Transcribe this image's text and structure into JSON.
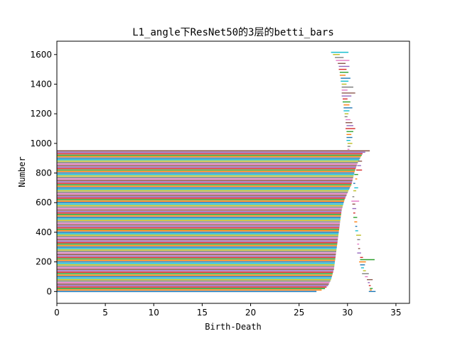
{
  "chart_data": {
    "type": "bar",
    "orientation": "horizontal",
    "title": "L1_angle下ResNet50的3层的betti_bars",
    "xlabel": "Birth-Death",
    "ylabel": "Number",
    "xlim": [
      0,
      36.4
    ],
    "ylim": [
      -80,
      1690
    ],
    "x_ticks": [
      0,
      5,
      10,
      15,
      20,
      25,
      30,
      35
    ],
    "y_ticks": [
      0,
      200,
      400,
      600,
      800,
      1000,
      1200,
      1400,
      1600
    ],
    "grid": false,
    "legend": "none",
    "colors": [
      "#1f77b4",
      "#ff7f0e",
      "#2ca02c",
      "#d62728",
      "#9467bd",
      "#8c564b",
      "#e377c2",
      "#7f7f7f",
      "#bcbd22",
      "#17becf"
    ],
    "dim0_bars": {
      "count": 950,
      "birth": 0,
      "death_profile": [
        [
          0,
          26.8
        ],
        [
          15,
          27.6
        ],
        [
          40,
          28.0
        ],
        [
          80,
          28.3
        ],
        [
          150,
          28.6
        ],
        [
          250,
          28.8
        ],
        [
          350,
          29.0
        ],
        [
          450,
          29.2
        ],
        [
          550,
          29.4
        ],
        [
          620,
          29.7
        ],
        [
          680,
          30.1
        ],
        [
          720,
          30.4
        ],
        [
          800,
          30.7
        ],
        [
          860,
          31.0
        ],
        [
          900,
          31.3
        ],
        [
          935,
          31.6
        ],
        [
          950,
          32.3
        ]
      ]
    },
    "dim1_bars": [
      {
        "y": 0,
        "birth": 32.2,
        "death": 32.9
      },
      {
        "y": 10,
        "birth": 32.3,
        "death": 32.5
      },
      {
        "y": 20,
        "birth": 32.3,
        "death": 32.6
      },
      {
        "y": 40,
        "birth": 32.2,
        "death": 32.4
      },
      {
        "y": 60,
        "birth": 32.1,
        "death": 32.3
      },
      {
        "y": 80,
        "birth": 32.0,
        "death": 32.6
      },
      {
        "y": 100,
        "birth": 31.8,
        "death": 32.1
      },
      {
        "y": 120,
        "birth": 31.5,
        "death": 32.2
      },
      {
        "y": 140,
        "birth": 31.6,
        "death": 31.9
      },
      {
        "y": 160,
        "birth": 31.4,
        "death": 31.7
      },
      {
        "y": 180,
        "birth": 31.3,
        "death": 31.8
      },
      {
        "y": 200,
        "birth": 31.2,
        "death": 31.9
      },
      {
        "y": 215,
        "birth": 31.3,
        "death": 32.8
      },
      {
        "y": 230,
        "birth": 31.3,
        "death": 31.6
      },
      {
        "y": 260,
        "birth": 31.0,
        "death": 31.4
      },
      {
        "y": 290,
        "birth": 31.1,
        "death": 31.3
      },
      {
        "y": 320,
        "birth": 31.0,
        "death": 31.2
      },
      {
        "y": 350,
        "birth": 31.0,
        "death": 31.3
      },
      {
        "y": 380,
        "birth": 30.9,
        "death": 31.4
      },
      {
        "y": 410,
        "birth": 30.8,
        "death": 31.1
      },
      {
        "y": 440,
        "birth": 30.8,
        "death": 31.0
      },
      {
        "y": 470,
        "birth": 30.7,
        "death": 31.0
      },
      {
        "y": 500,
        "birth": 30.6,
        "death": 31.0
      },
      {
        "y": 530,
        "birth": 30.6,
        "death": 30.8
      },
      {
        "y": 560,
        "birth": 30.5,
        "death": 30.9
      },
      {
        "y": 590,
        "birth": 30.5,
        "death": 30.8
      },
      {
        "y": 610,
        "birth": 30.4,
        "death": 31.2
      },
      {
        "y": 640,
        "birth": 30.5,
        "death": 30.7
      },
      {
        "y": 680,
        "birth": 30.6,
        "death": 30.9
      },
      {
        "y": 700,
        "birth": 30.7,
        "death": 31.1
      },
      {
        "y": 730,
        "birth": 30.6,
        "death": 30.8
      },
      {
        "y": 760,
        "birth": 30.8,
        "death": 31.0
      },
      {
        "y": 790,
        "birth": 30.7,
        "death": 31.1
      },
      {
        "y": 820,
        "birth": 30.9,
        "death": 31.5
      },
      {
        "y": 850,
        "birth": 31.0,
        "death": 31.4
      },
      {
        "y": 880,
        "birth": 31.1,
        "death": 31.5
      },
      {
        "y": 960,
        "birth": 30.0,
        "death": 30.2
      },
      {
        "y": 980,
        "birth": 30.0,
        "death": 30.3
      },
      {
        "y": 1000,
        "birth": 30.0,
        "death": 30.5
      },
      {
        "y": 1020,
        "birth": 29.9,
        "death": 30.3
      },
      {
        "y": 1040,
        "birth": 29.9,
        "death": 30.5
      },
      {
        "y": 1060,
        "birth": 29.9,
        "death": 30.4
      },
      {
        "y": 1080,
        "birth": 29.9,
        "death": 30.6
      },
      {
        "y": 1100,
        "birth": 29.8,
        "death": 30.8
      },
      {
        "y": 1120,
        "birth": 29.9,
        "death": 30.6
      },
      {
        "y": 1140,
        "birth": 29.8,
        "death": 30.5
      },
      {
        "y": 1160,
        "birth": 29.8,
        "death": 30.3
      },
      {
        "y": 1180,
        "birth": 29.7,
        "death": 30.0
      },
      {
        "y": 1200,
        "birth": 29.7,
        "death": 30.1
      },
      {
        "y": 1220,
        "birth": 29.6,
        "death": 30.2
      },
      {
        "y": 1240,
        "birth": 29.6,
        "death": 30.5
      },
      {
        "y": 1260,
        "birth": 29.6,
        "death": 30.2
      },
      {
        "y": 1280,
        "birth": 29.5,
        "death": 30.3
      },
      {
        "y": 1300,
        "birth": 29.5,
        "death": 30.0
      },
      {
        "y": 1320,
        "birth": 29.4,
        "death": 30.4
      },
      {
        "y": 1340,
        "birth": 29.4,
        "death": 30.8
      },
      {
        "y": 1360,
        "birth": 29.4,
        "death": 30.0
      },
      {
        "y": 1380,
        "birth": 29.4,
        "death": 30.6
      },
      {
        "y": 1400,
        "birth": 29.4,
        "death": 29.9
      },
      {
        "y": 1420,
        "birth": 29.3,
        "death": 30.1
      },
      {
        "y": 1440,
        "birth": 29.3,
        "death": 30.3
      },
      {
        "y": 1460,
        "birth": 29.2,
        "death": 29.8
      },
      {
        "y": 1480,
        "birth": 29.2,
        "death": 30.1
      },
      {
        "y": 1500,
        "birth": 29.1,
        "death": 29.9
      },
      {
        "y": 1520,
        "birth": 29.1,
        "death": 30.2
      },
      {
        "y": 1540,
        "birth": 29.0,
        "death": 29.8
      },
      {
        "y": 1560,
        "birth": 28.8,
        "death": 30.2
      },
      {
        "y": 1580,
        "birth": 28.7,
        "death": 29.6
      },
      {
        "y": 1600,
        "birth": 28.5,
        "death": 29.2
      },
      {
        "y": 1615,
        "birth": 28.3,
        "death": 30.1
      }
    ]
  }
}
